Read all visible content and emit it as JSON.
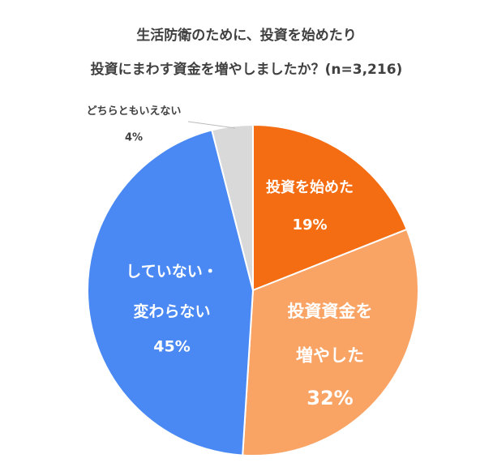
{
  "chart_data": {
    "type": "pie",
    "title": [
      "生活防衛のために、投資を始めたり",
      "投資にまわす資金を増やしましたか？(n=3,216)"
    ],
    "categories": [
      "投資を始めた",
      "投資資金を\n増やした",
      "していない・\n変わらない",
      "どちらともいえない"
    ],
    "values": [
      19,
      32,
      45,
      4
    ],
    "value_labels": [
      "19%",
      "32%",
      "45%",
      "4%"
    ],
    "colors": [
      "#f46d12",
      "#f9a465",
      "#4a89f3",
      "#d9d9d9"
    ]
  }
}
